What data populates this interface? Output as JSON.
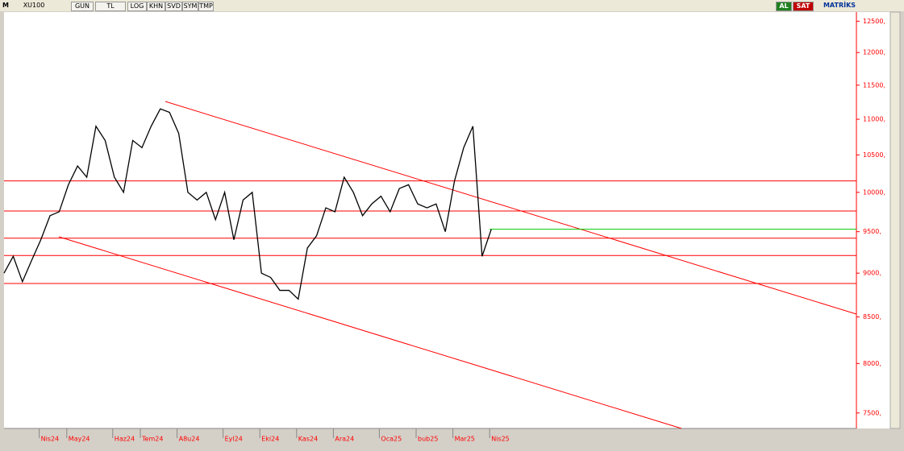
{
  "toolbar": {
    "logo": "M",
    "symbol": "XU100",
    "buttons": [
      "GUN",
      "TL",
      "LOG",
      "KHN",
      "SVD",
      "SYM",
      "TMP"
    ],
    "buy": "AL",
    "sell": "SAT",
    "brand": "MATRİKS"
  },
  "chart_data": {
    "type": "line",
    "log_scale": true,
    "color": "#000000",
    "categories": [
      null,
      null,
      null,
      null,
      "Nis24",
      null,
      null,
      "May24",
      null,
      null,
      null,
      null,
      "Haz24",
      null,
      null,
      "Tem24",
      null,
      null,
      null,
      "A8u24",
      null,
      null,
      null,
      null,
      "Eyl24",
      null,
      null,
      null,
      "Eki24",
      null,
      null,
      null,
      "Kas24",
      null,
      null,
      null,
      "Ara24",
      null,
      null,
      null,
      null,
      "Oca25",
      null,
      null,
      null,
      "bub25",
      null,
      null,
      null,
      "Mar25",
      null,
      null,
      null,
      "Nis25"
    ],
    "series": [
      {
        "name": "XU100",
        "color": "#000000",
        "values": [
          9000,
          9200,
          8900,
          9150,
          9400,
          9700,
          9750,
          10100,
          10350,
          10200,
          10900,
          10700,
          10200,
          10000,
          10700,
          10600,
          10900,
          11150,
          11100,
          10800,
          10000,
          9900,
          10000,
          9650,
          10000,
          9400,
          9900,
          10000,
          9000,
          8950,
          8800,
          8800,
          8700,
          9300,
          9450,
          9800,
          9750,
          10200,
          10000,
          9700,
          9850,
          9950,
          9750,
          10050,
          10100,
          9850,
          9800,
          9850,
          9500,
          10150,
          10600,
          10900,
          9200,
          9530
        ]
      }
    ],
    "ylim": [
      7350,
      12650
    ],
    "yticks": [
      {
        "value": 7500,
        "label": "7500,"
      },
      {
        "value": 8000,
        "label": "8000,"
      },
      {
        "value": 8500,
        "label": "8500,"
      },
      {
        "value": 9000,
        "label": "9000,"
      },
      {
        "value": 9500,
        "label": "9500,"
      },
      {
        "value": 10000,
        "label": "10000,"
      },
      {
        "value": 10500,
        "label": "10500,"
      },
      {
        "value": 11000,
        "label": "11000,"
      },
      {
        "value": 11500,
        "label": "11500,"
      },
      {
        "value": 12000,
        "label": "12000,"
      },
      {
        "value": 12500,
        "label": "12500,"
      }
    ],
    "hlines": [
      {
        "value": 10150,
        "color": "#ff0000"
      },
      {
        "value": 9760,
        "color": "#ff0000"
      },
      {
        "value": 9420,
        "color": "#ff0000"
      },
      {
        "value": 9210,
        "color": "#ff0000"
      },
      {
        "value": 8880,
        "color": "#ff0000"
      },
      {
        "value": 9530,
        "color": "#00cc00"
      }
    ]
  }
}
